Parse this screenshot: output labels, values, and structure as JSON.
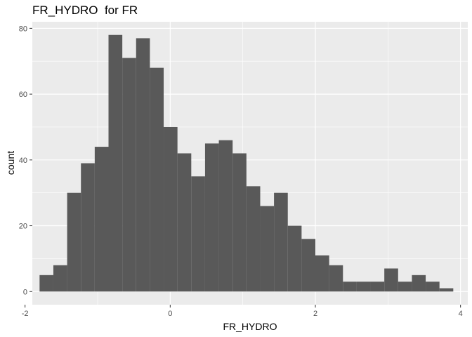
{
  "chart_data": {
    "type": "bar",
    "title": "FR_HYDRO  for FR",
    "xlabel": "FR_HYDRO",
    "ylabel": "count",
    "xlim": [
      -1.9,
      4.1
    ],
    "ylim": [
      -4,
      82
    ],
    "xticks": [
      -2,
      0,
      2,
      4
    ],
    "yticks": [
      0,
      20,
      40,
      60,
      80
    ],
    "grid": true,
    "bin_width": 0.19,
    "bin_start": -1.8,
    "values": [
      5,
      8,
      30,
      39,
      44,
      78,
      71,
      77,
      68,
      50,
      42,
      35,
      45,
      46,
      42,
      32,
      26,
      30,
      20,
      16,
      11,
      8,
      3,
      3,
      3,
      7,
      3,
      5,
      3,
      1
    ],
    "colors": {
      "panel": "#ebebeb",
      "grid_major": "#ffffff",
      "bar": "#595959"
    }
  }
}
